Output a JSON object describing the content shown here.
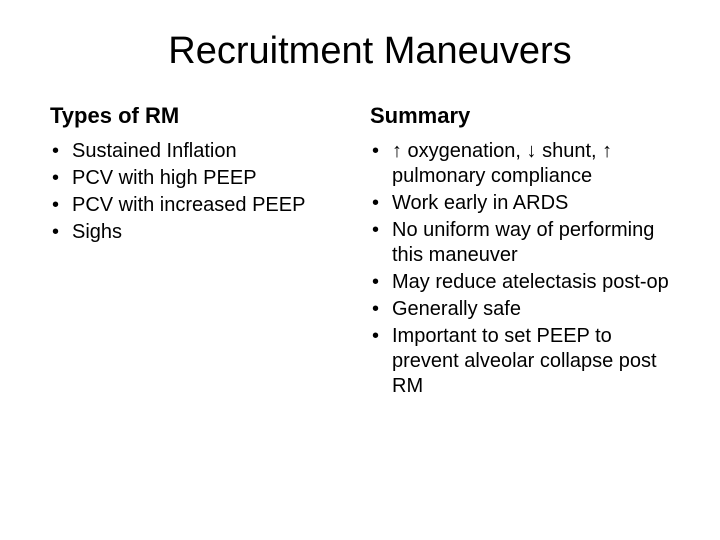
{
  "title": "Recruitment Maneuvers",
  "left": {
    "heading": "Types of RM",
    "items": [
      "Sustained Inflation",
      "PCV with high PEEP",
      "PCV with increased PEEP",
      "Sighs"
    ]
  },
  "right": {
    "heading": "Summary",
    "items": [
      "↑ oxygenation, ↓ shunt, ↑ pulmonary compliance",
      "Work early in ARDS",
      "No uniform way of performing this maneuver",
      "May reduce atelectasis post-op",
      "Generally safe",
      "Important to set PEEP to prevent alveolar collapse post RM"
    ]
  },
  "colors": {
    "background": "#ffffff",
    "text": "#000000"
  },
  "fonts": {
    "title_size": 38,
    "heading_size": 22,
    "body_size": 20,
    "family": "Arial"
  }
}
